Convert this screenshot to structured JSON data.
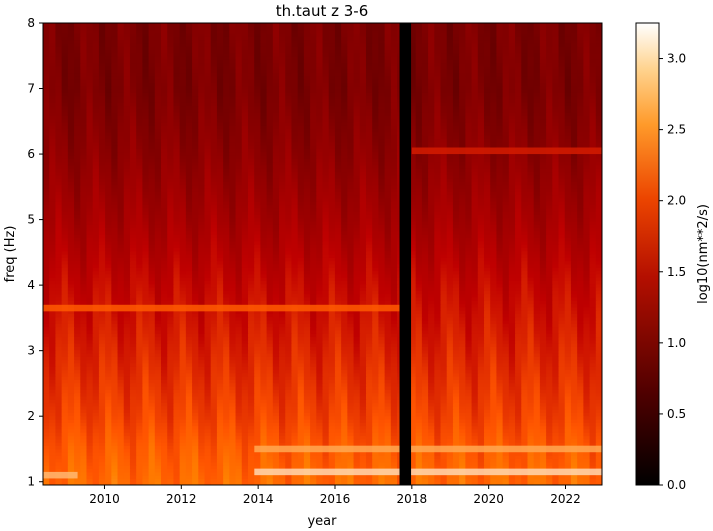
{
  "chart_data": {
    "type": "heatmap",
    "title": "th.taut z 3-6",
    "xlabel": "year",
    "ylabel": "freq (Hz)",
    "xlim": [
      2008.4,
      2022.95
    ],
    "ylim": [
      0.95,
      8.0
    ],
    "x_ticks": [
      2010,
      2012,
      2014,
      2016,
      2018,
      2020,
      2022
    ],
    "y_ticks": [
      1,
      2,
      3,
      4,
      5,
      6,
      7,
      8
    ],
    "colorbar": {
      "label": "log10(nm**2/s)",
      "range": [
        0.0,
        3.25
      ],
      "ticks": [
        0.0,
        0.5,
        1.0,
        1.5,
        2.0,
        2.5,
        3.0
      ],
      "colormap": "gist_heat"
    },
    "data_gap": {
      "x_start": 2017.68,
      "x_end": 2017.98
    },
    "level_profile": [
      {
        "freq": 1.0,
        "value": 2.3
      },
      {
        "freq": 1.5,
        "value": 2.2
      },
      {
        "freq": 2.0,
        "value": 2.05
      },
      {
        "freq": 2.5,
        "value": 1.95
      },
      {
        "freq": 3.0,
        "value": 1.85
      },
      {
        "freq": 4.0,
        "value": 1.65
      },
      {
        "freq": 5.0,
        "value": 1.4
      },
      {
        "freq": 6.0,
        "value": 1.2
      },
      {
        "freq": 7.0,
        "value": 1.05
      },
      {
        "freq": 8.0,
        "value": 1.05
      }
    ],
    "bands": [
      {
        "freq": 1.15,
        "x_start": 2013.9,
        "x_end": 2022.95,
        "value": 3.0
      },
      {
        "freq": 1.5,
        "x_start": 2013.9,
        "x_end": 2022.95,
        "value": 2.7
      },
      {
        "freq": 3.65,
        "x_start": 2008.4,
        "x_end": 2017.68,
        "value": 2.2
      },
      {
        "freq": 1.1,
        "x_start": 2008.4,
        "x_end": 2009.3,
        "value": 2.8
      },
      {
        "freq": 6.05,
        "x_start": 2018.0,
        "x_end": 2022.95,
        "value": 1.8
      }
    ]
  }
}
